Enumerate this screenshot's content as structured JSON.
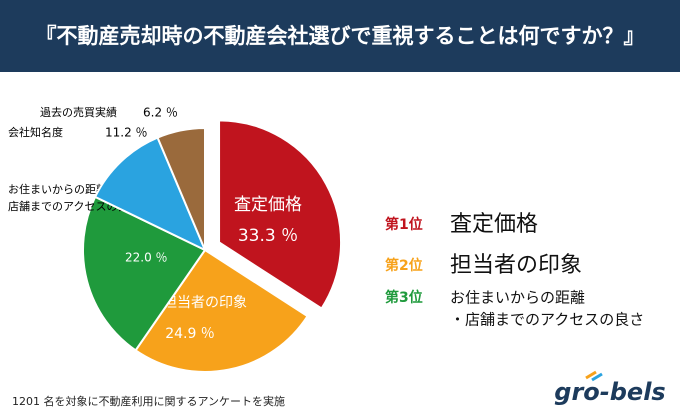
{
  "chart_data": {
    "type": "pie",
    "title": "『不動産売却時の不動産会社選びで重視することは何ですか？』",
    "categories": [
      "査定価格",
      "担当者の印象",
      [
        "お住まいからの距離",
        "店舗までのアクセスの良さ"
      ],
      "会社知名度",
      "過去の売買実績"
    ],
    "values": [
      33.3,
      24.9,
      22.0,
      11.2,
      6.2
    ],
    "value_labels": [
      "33.3 ％",
      "24.9 ％",
      "22.0 ％",
      "11.2 ％",
      "6.2 ％"
    ],
    "colors": [
      "#c0141e",
      "#f7a21b",
      "#1f9a3c",
      "#2aa3e0",
      "#9a6a3c"
    ],
    "ranking": [
      {
        "rank": "第1位",
        "color": "#c0141e",
        "label": [
          "査定価格"
        ]
      },
      {
        "rank": "第2位",
        "color": "#f7a21b",
        "label": [
          "担当者の印象"
        ]
      },
      {
        "rank": "第3位",
        "color": "#1f9a3c",
        "label": [
          "お住まいからの距離",
          "・店舗までのアクセスの良さ"
        ]
      }
    ],
    "footnote": "1201 名を対象に不動産利用に関するアンケートを実施",
    "logo": "gro-bels"
  }
}
